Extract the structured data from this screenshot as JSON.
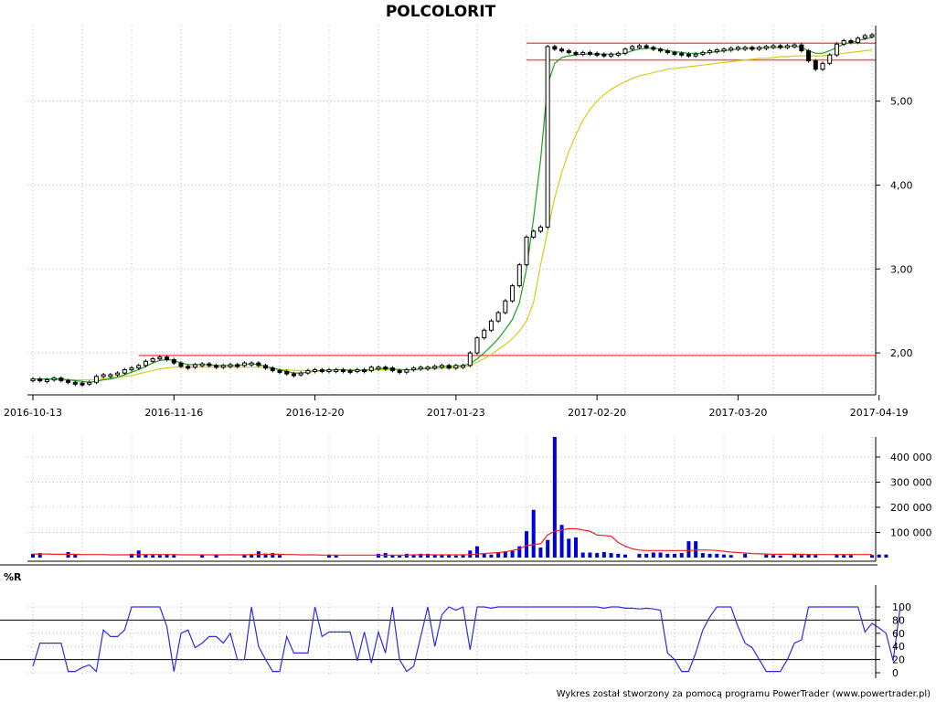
{
  "title": "POLCOLORIT",
  "footer": "Wykres został stworzony za pomocą programu PowerTrader (www.powertrader.pl)",
  "colors": {
    "ma_short": "#1fa01f",
    "ma_long": "#d8cc1a",
    "resistance": "#f25c5c",
    "volume": "#0000dd",
    "volume_ma": "#ee2222",
    "wr": "#2d2de0",
    "grid": "#b8b8b8"
  },
  "chart_data": [
    {
      "type": "candlestick",
      "title": "POLCOLORIT",
      "x_tick_labels": [
        "2016-10-13",
        "2016-11-16",
        "2016-12-20",
        "2017-01-23",
        "2017-02-20",
        "2017-03-20",
        "2017-04-19"
      ],
      "y_tick_labels": [
        "2,00",
        "3,00",
        "4,00",
        "5,00"
      ],
      "ylim": [
        1.5,
        5.9
      ],
      "grid": true,
      "horizontal_levels": [
        {
          "value": 1.97,
          "from_session": 15
        },
        {
          "value": 5.49,
          "from_session": 70
        },
        {
          "value": 5.69,
          "from_session": 70
        }
      ],
      "close": [
        1.69,
        1.68,
        1.68,
        1.7,
        1.67,
        1.65,
        1.64,
        1.63,
        1.65,
        1.72,
        1.74,
        1.74,
        1.76,
        1.8,
        1.82,
        1.85,
        1.9,
        1.93,
        1.95,
        1.92,
        1.88,
        1.84,
        1.83,
        1.86,
        1.87,
        1.85,
        1.84,
        1.85,
        1.86,
        1.85,
        1.88,
        1.88,
        1.85,
        1.82,
        1.79,
        1.78,
        1.75,
        1.74,
        1.76,
        1.79,
        1.8,
        1.79,
        1.8,
        1.8,
        1.79,
        1.78,
        1.8,
        1.79,
        1.83,
        1.83,
        1.82,
        1.79,
        1.77,
        1.8,
        1.82,
        1.83,
        1.83,
        1.84,
        1.85,
        1.82,
        1.85,
        1.85,
        2.0,
        2.18,
        2.27,
        2.38,
        2.48,
        2.62,
        2.8,
        3.05,
        3.38,
        3.45,
        3.5,
        5.65,
        5.62,
        5.6,
        5.58,
        5.57,
        5.58,
        5.57,
        5.56,
        5.55,
        5.56,
        5.57,
        5.62,
        5.65,
        5.66,
        5.64,
        5.62,
        5.6,
        5.58,
        5.57,
        5.56,
        5.55,
        5.56,
        5.58,
        5.6,
        5.61,
        5.62,
        5.63,
        5.64,
        5.64,
        5.63,
        5.64,
        5.65,
        5.66,
        5.65,
        5.66,
        5.67,
        5.6,
        5.48,
        5.38,
        5.45,
        5.55,
        5.68,
        5.72,
        5.7,
        5.75,
        5.78,
        5.79
      ],
      "series": [
        {
          "name": "",
          "values": [
            1.69,
            1.69,
            1.69,
            1.69,
            1.69,
            1.68,
            1.67,
            1.66,
            1.65,
            1.66,
            1.68,
            1.69,
            1.71,
            1.74,
            1.77,
            1.8,
            1.84,
            1.88,
            1.91,
            1.92,
            1.91,
            1.88,
            1.86,
            1.86,
            1.86,
            1.86,
            1.85,
            1.85,
            1.85,
            1.85,
            1.86,
            1.87,
            1.86,
            1.84,
            1.82,
            1.8,
            1.78,
            1.76,
            1.76,
            1.77,
            1.78,
            1.79,
            1.79,
            1.8,
            1.8,
            1.79,
            1.79,
            1.79,
            1.8,
            1.81,
            1.82,
            1.81,
            1.8,
            1.8,
            1.8,
            1.81,
            1.82,
            1.83,
            1.84,
            1.84,
            1.84,
            1.85,
            1.87,
            1.93,
            2.0,
            2.08,
            2.17,
            2.28,
            2.4,
            2.6,
            3.0,
            3.6,
            4.3,
            5.2,
            5.45,
            5.52,
            5.54,
            5.55,
            5.56,
            5.56,
            5.56,
            5.56,
            5.56,
            5.56,
            5.57,
            5.6,
            5.62,
            5.63,
            5.63,
            5.62,
            5.6,
            5.59,
            5.58,
            5.57,
            5.57,
            5.57,
            5.58,
            5.59,
            5.6,
            5.61,
            5.62,
            5.63,
            5.63,
            5.63,
            5.64,
            5.64,
            5.64,
            5.65,
            5.66,
            5.64,
            5.6,
            5.57,
            5.57,
            5.6,
            5.64,
            5.68,
            5.7,
            5.72,
            5.74,
            5.76
          ]
        },
        {
          "name": "",
          "values": [
            1.69,
            1.69,
            1.69,
            1.68,
            1.68,
            1.68,
            1.68,
            1.68,
            1.68,
            1.68,
            1.69,
            1.7,
            1.71,
            1.72,
            1.73,
            1.75,
            1.77,
            1.79,
            1.81,
            1.82,
            1.83,
            1.83,
            1.83,
            1.83,
            1.83,
            1.83,
            1.83,
            1.83,
            1.83,
            1.83,
            1.83,
            1.83,
            1.83,
            1.82,
            1.81,
            1.8,
            1.8,
            1.79,
            1.79,
            1.79,
            1.79,
            1.79,
            1.79,
            1.8,
            1.8,
            1.8,
            1.8,
            1.8,
            1.8,
            1.8,
            1.8,
            1.8,
            1.8,
            1.8,
            1.8,
            1.81,
            1.81,
            1.81,
            1.82,
            1.82,
            1.82,
            1.83,
            1.85,
            1.89,
            1.93,
            1.98,
            2.04,
            2.1,
            2.17,
            2.26,
            2.38,
            2.6,
            3.05,
            3.45,
            3.85,
            4.15,
            4.4,
            4.6,
            4.77,
            4.9,
            5.0,
            5.08,
            5.14,
            5.19,
            5.23,
            5.27,
            5.3,
            5.32,
            5.34,
            5.36,
            5.38,
            5.39,
            5.4,
            5.41,
            5.42,
            5.43,
            5.44,
            5.45,
            5.46,
            5.47,
            5.48,
            5.49,
            5.5,
            5.51,
            5.51,
            5.52,
            5.53,
            5.53,
            5.54,
            5.54,
            5.54,
            5.54,
            5.54,
            5.55,
            5.56,
            5.57,
            5.58,
            5.59,
            5.6,
            5.61
          ]
        }
      ]
    },
    {
      "type": "bar",
      "y_tick_labels": [
        "100 000",
        "200 000",
        "300 000",
        "400 000"
      ],
      "ylim": [
        0,
        480000
      ],
      "grid": true,
      "values": [
        15000,
        18000,
        0,
        0,
        0,
        22000,
        12000,
        0,
        0,
        0,
        0,
        0,
        0,
        0,
        15000,
        28000,
        12000,
        10000,
        10000,
        12000,
        10000,
        0,
        0,
        0,
        10000,
        0,
        10000,
        0,
        0,
        0,
        10000,
        12000,
        25000,
        16000,
        18000,
        10000,
        0,
        0,
        0,
        0,
        0,
        0,
        12000,
        10000,
        0,
        0,
        0,
        0,
        0,
        15000,
        18000,
        10000,
        8000,
        15000,
        10000,
        15000,
        15000,
        10000,
        12000,
        10000,
        8000,
        10000,
        28000,
        45000,
        16000,
        12000,
        20000,
        25000,
        30000,
        45000,
        105000,
        190000,
        40000,
        70000,
        480000,
        130000,
        75000,
        80000,
        20000,
        20000,
        18000,
        22000,
        18000,
        15000,
        12000,
        0,
        15000,
        15000,
        20000,
        20000,
        15000,
        15000,
        18000,
        65000,
        65000,
        18000,
        15000,
        15000,
        12000,
        10000,
        0,
        15000,
        0,
        0,
        12000,
        10000,
        8000,
        0,
        15000,
        10000,
        12000,
        10000,
        0,
        0,
        12000,
        10000,
        10000,
        0,
        0,
        10000,
        12000,
        12000
      ],
      "series": [
        {
          "name": "",
          "values": [
            14000,
            14000,
            14000,
            13000,
            13000,
            13000,
            13000,
            12000,
            12000,
            12000,
            12000,
            11000,
            11000,
            11000,
            11000,
            12000,
            12000,
            12000,
            12000,
            12000,
            12000,
            11000,
            11000,
            11000,
            11000,
            11000,
            11000,
            11000,
            11000,
            11000,
            11000,
            12000,
            12000,
            13000,
            13000,
            13000,
            12000,
            12000,
            11000,
            11000,
            11000,
            10000,
            10000,
            10000,
            10000,
            10000,
            10000,
            10000,
            10000,
            10000,
            10000,
            10000,
            10000,
            10000,
            11000,
            11000,
            11000,
            11000,
            11000,
            11000,
            11000,
            11000,
            12000,
            14000,
            16000,
            18000,
            20000,
            23000,
            28000,
            35000,
            48000,
            52000,
            55000,
            90000,
            105000,
            110000,
            115000,
            115000,
            110000,
            105000,
            90000,
            88000,
            85000,
            60000,
            45000,
            35000,
            30000,
            28000,
            28000,
            28000,
            28000,
            28000,
            28000,
            28000,
            30000,
            30000,
            30000,
            28000,
            25000,
            22000,
            20000,
            18000,
            16000,
            15000,
            14000,
            13000,
            13000,
            13000,
            13000,
            13000,
            12000,
            12000,
            12000,
            12000,
            12000,
            12000,
            12000,
            12000,
            12000,
            12000
          ]
        }
      ]
    },
    {
      "type": "line",
      "title": "%R",
      "y_tick_labels": [
        "0",
        "20",
        "40",
        "60",
        "80",
        "100"
      ],
      "ylim": [
        0,
        100
      ],
      "reference_lines": [
        20,
        80
      ],
      "values": [
        10,
        45,
        45,
        45,
        45,
        2,
        2,
        8,
        12,
        2,
        65,
        55,
        55,
        65,
        100,
        100,
        100,
        100,
        100,
        70,
        2,
        60,
        65,
        38,
        45,
        55,
        55,
        45,
        60,
        20,
        20,
        100,
        40,
        20,
        2,
        2,
        55,
        30,
        30,
        30,
        100,
        55,
        62,
        62,
        62,
        62,
        18,
        62,
        15,
        62,
        30,
        100,
        20,
        2,
        10,
        55,
        100,
        40,
        88,
        100,
        95,
        100,
        35,
        100,
        100,
        98,
        100,
        100,
        100,
        100,
        100,
        100,
        100,
        100,
        100,
        100,
        100,
        100,
        100,
        100,
        100,
        98,
        100,
        100,
        98,
        98,
        97,
        98,
        97,
        95,
        30,
        20,
        2,
        2,
        30,
        65,
        85,
        100,
        100,
        100,
        70,
        45,
        38,
        20,
        2,
        2,
        2,
        20,
        45,
        50,
        100,
        100,
        100,
        100,
        100,
        100,
        100,
        100,
        62,
        75,
        68,
        60,
        18,
        100
      ]
    }
  ]
}
